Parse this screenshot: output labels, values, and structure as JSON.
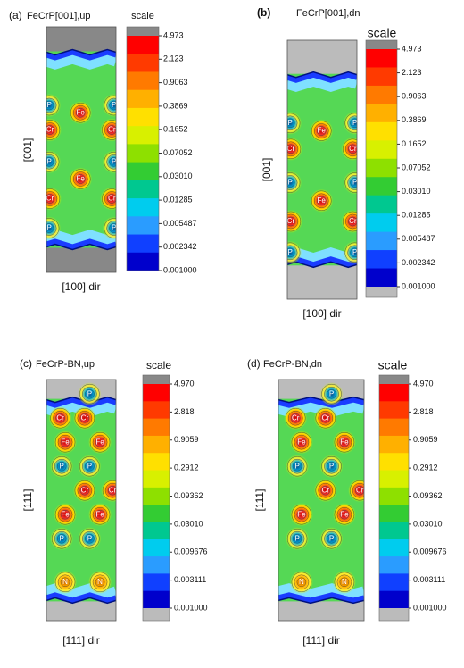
{
  "panels": [
    {
      "tag": "(a)",
      "title": "FeCrP[001],up",
      "x_label": "[100] dir",
      "y_label": "[001]",
      "scale_label": "scale",
      "scale_ticks": [
        "4.973",
        "2.123",
        "0.9063",
        "0.3869",
        "0.1652",
        "0.07052",
        "0.03010",
        "0.01285",
        "0.005487",
        "0.002342",
        "0.001000"
      ],
      "atoms": [
        "P",
        "P",
        "Fe",
        "Cr",
        "Cr",
        "P",
        "P",
        "Fe",
        "Cr",
        "Cr",
        "P",
        "P"
      ]
    },
    {
      "tag": "(b)",
      "title": "FeCrP[001],dn",
      "x_label": "[100] dir",
      "y_label": "[001]",
      "scale_label": "scale",
      "scale_ticks": [
        "4.973",
        "2.123",
        "0.9063",
        "0.3869",
        "0.1652",
        "0.07052",
        "0.03010",
        "0.01285",
        "0.005487",
        "0.002342",
        "0.001000"
      ],
      "atoms": [
        "P",
        "P",
        "Fe",
        "Cr",
        "Cr",
        "P",
        "P",
        "Fe",
        "Cr",
        "Cr",
        "P",
        "P"
      ]
    },
    {
      "tag": "(c)",
      "title": "FeCrP-BN,up",
      "x_label": "[111] dir",
      "y_label": "[111]",
      "scale_label": "scale",
      "scale_ticks": [
        "4.970",
        "2.818",
        "0.9059",
        "0.2912",
        "0.09362",
        "0.03010",
        "0.009676",
        "0.003111",
        "0.001000"
      ],
      "atoms": [
        "P",
        "Cr",
        "Cr",
        "Fe",
        "Fe",
        "P",
        "P",
        "Cr",
        "Cr",
        "Fe",
        "Fe",
        "P",
        "P",
        "N",
        "N"
      ]
    },
    {
      "tag": "(d)",
      "title": "FeCrP-BN,dn",
      "x_label": "[111] dir",
      "y_label": "[111]",
      "scale_label": "scale",
      "scale_ticks": [
        "4.970",
        "2.818",
        "0.9059",
        "0.2912",
        "0.09362",
        "0.03010",
        "0.009676",
        "0.003111",
        "0.001000"
      ],
      "atoms": [
        "P",
        "Cr",
        "Cr",
        "Fe",
        "Fe",
        "P",
        "P",
        "Cr",
        "Cr",
        "Fe",
        "Fe",
        "P",
        "P",
        "N",
        "N"
      ]
    }
  ]
}
